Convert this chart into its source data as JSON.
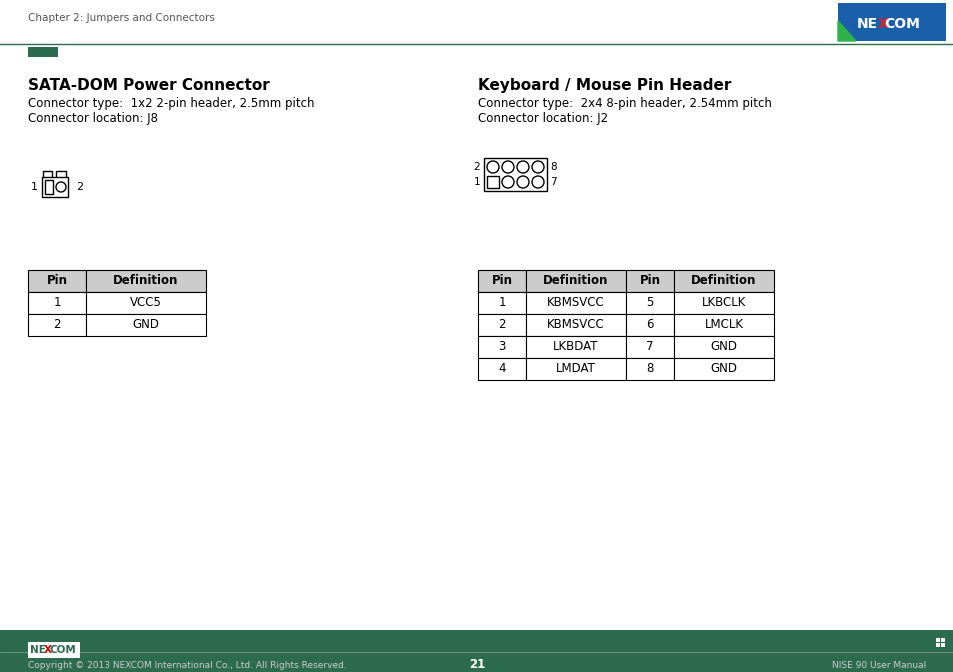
{
  "page_bg": "#ffffff",
  "header_text": "Chapter 2: Jumpers and Connectors",
  "header_bar_color": "#2d6b4e",
  "nexcom_logo_bg": "#1a5faa",
  "left_title": "SATA-DOM Power Connector",
  "left_connector_type": "Connector type:  1x2 2-pin header, 2.5mm pitch",
  "left_connector_location": "Connector location: J8",
  "right_title": "Keyboard / Mouse Pin Header",
  "right_connector_type": "Connector type:  2x4 8-pin header, 2.54mm pitch",
  "right_connector_location": "Connector location: J2",
  "left_table_headers": [
    "Pin",
    "Definition"
  ],
  "left_table_rows": [
    [
      "1",
      "VCC5"
    ],
    [
      "2",
      "GND"
    ]
  ],
  "right_table_headers": [
    "Pin",
    "Definition",
    "Pin",
    "Definition"
  ],
  "right_table_rows": [
    [
      "1",
      "KBMSVCC",
      "5",
      "LKBCLK"
    ],
    [
      "2",
      "KBMSVCC",
      "6",
      "LMCLK"
    ],
    [
      "3",
      "LKBDAT",
      "7",
      "GND"
    ],
    [
      "4",
      "LMDAT",
      "8",
      "GND"
    ]
  ],
  "footer_bar_color": "#2d6b4e",
  "footer_left": "Copyright © 2013 NEXCOM International Co., Ltd. All Rights Reserved.",
  "footer_center": "21",
  "footer_right": "NISE 90 User Manual",
  "table_border_color": "#000000",
  "table_header_bg": "#cccccc",
  "text_color": "#000000"
}
